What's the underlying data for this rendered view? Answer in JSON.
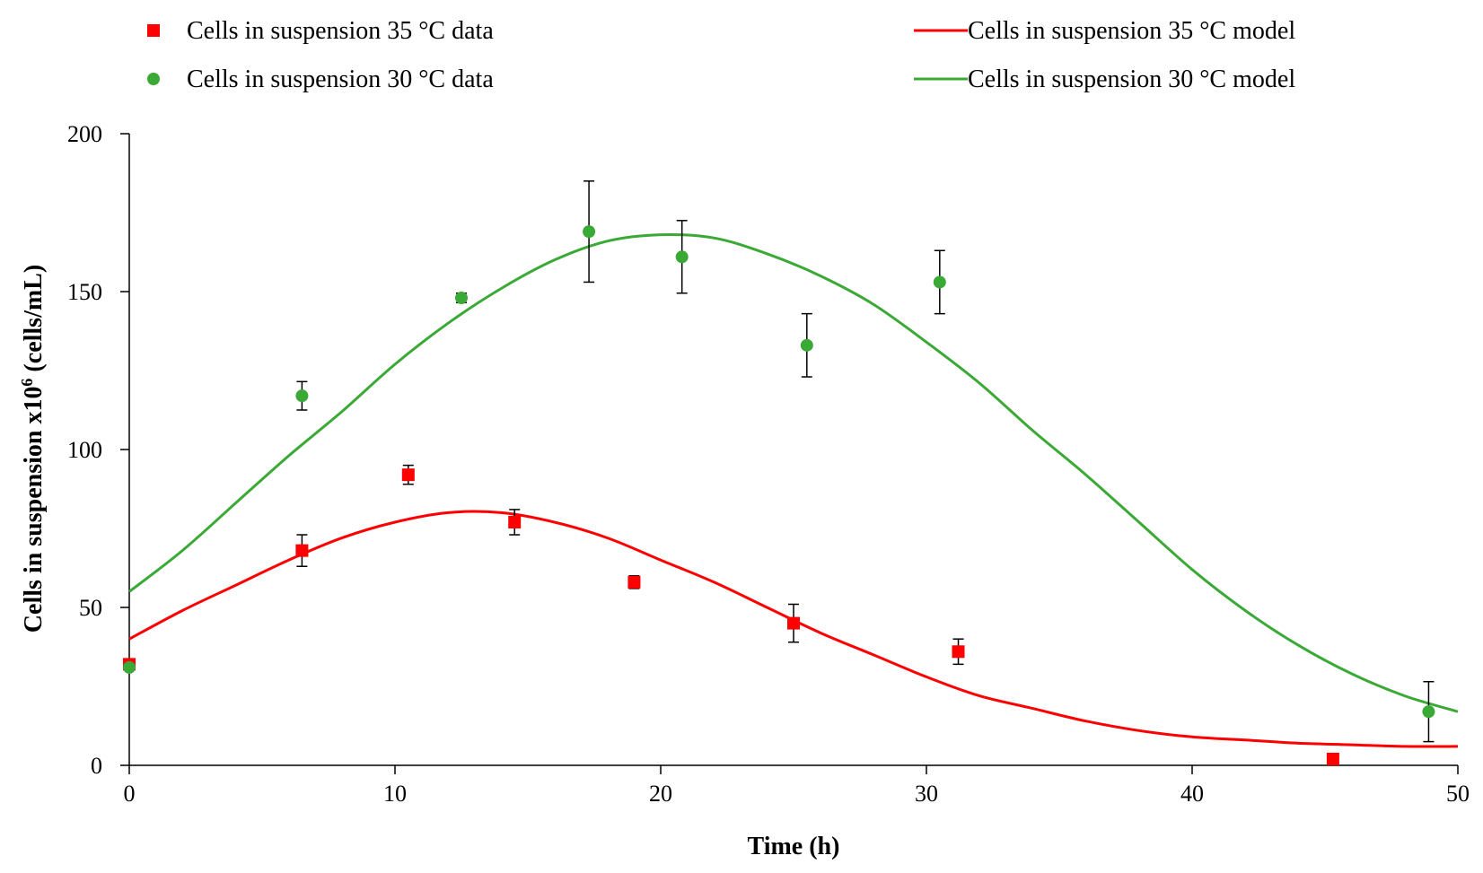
{
  "chart_data": {
    "type": "scatter",
    "title": "",
    "xlabel": "Time (h)",
    "ylabel_prefix": "Cells in suspension x10",
    "ylabel_sup": "6",
    "ylabel_suffix": " (cells/mL)",
    "xlim": [
      0,
      50
    ],
    "ylim": [
      0,
      200
    ],
    "x_ticks": [
      0,
      10,
      20,
      30,
      40,
      50
    ],
    "y_ticks": [
      0,
      50,
      100,
      150,
      200
    ],
    "grid": false,
    "legend": [
      {
        "label": "Cells in suspension 35 °C data",
        "kind": "square",
        "color": "#ff0000"
      },
      {
        "label": "Cells in suspension 30 °C data",
        "kind": "circle",
        "color": "#3aa935"
      },
      {
        "label": "Cells in suspension 35 °C model",
        "kind": "line",
        "color": "#ff0000"
      },
      {
        "label": "Cells in suspension 30 °C model",
        "kind": "line",
        "color": "#3aa935"
      }
    ],
    "data_series": [
      {
        "name": "Cells in suspension 35 °C data",
        "marker": "square",
        "color": "#ff0000",
        "points": [
          {
            "x": 0,
            "y": 32,
            "err": 0
          },
          {
            "x": 6.5,
            "y": 68,
            "err": 5
          },
          {
            "x": 10.5,
            "y": 92,
            "err": 3
          },
          {
            "x": 14.5,
            "y": 77,
            "err": 4
          },
          {
            "x": 19,
            "y": 58,
            "err": 2
          },
          {
            "x": 25,
            "y": 45,
            "err": 6
          },
          {
            "x": 31.2,
            "y": 36,
            "err": 4
          },
          {
            "x": 45.3,
            "y": 2,
            "err": 0
          }
        ]
      },
      {
        "name": "Cells in suspension 30 °C data",
        "marker": "circle",
        "color": "#3aa935",
        "points": [
          {
            "x": 0,
            "y": 31,
            "err": 0
          },
          {
            "x": 6.5,
            "y": 117,
            "err": 4.5
          },
          {
            "x": 12.5,
            "y": 148,
            "err": 1.5
          },
          {
            "x": 17.3,
            "y": 169,
            "err": 16
          },
          {
            "x": 20.8,
            "y": 161,
            "err": 11.5
          },
          {
            "x": 25.5,
            "y": 133,
            "err": 10
          },
          {
            "x": 30.5,
            "y": 153,
            "err": 10
          },
          {
            "x": 48.9,
            "y": 17,
            "err": 9.5
          }
        ]
      }
    ],
    "model_series": [
      {
        "name": "Cells in suspension 35 °C model",
        "color": "#ff0000",
        "x": [
          0,
          2,
          4,
          6,
          8,
          10,
          12,
          14,
          16,
          18,
          20,
          22,
          24,
          26,
          28,
          30,
          32,
          34,
          36,
          38,
          40,
          42,
          44,
          46,
          48,
          50
        ],
        "y": [
          40,
          49,
          57,
          65,
          72,
          77,
          80,
          80,
          77,
          72,
          65,
          58,
          50,
          42,
          35,
          28,
          22,
          18,
          14,
          11,
          9,
          8,
          7,
          6.5,
          6,
          6
        ]
      },
      {
        "name": "Cells in suspension 30 °C model",
        "color": "#3aa935",
        "x": [
          0,
          2,
          4,
          6,
          8,
          10,
          12,
          14,
          16,
          18,
          20,
          22,
          24,
          26,
          28,
          30,
          32,
          34,
          36,
          38,
          40,
          42,
          44,
          46,
          48,
          50
        ],
        "y": [
          55,
          68,
          83,
          98,
          112,
          127,
          140,
          151,
          160,
          166,
          168,
          167,
          162,
          155,
          146,
          134,
          121,
          106,
          92,
          77,
          62,
          49,
          38,
          29,
          22,
          17
        ]
      }
    ]
  }
}
